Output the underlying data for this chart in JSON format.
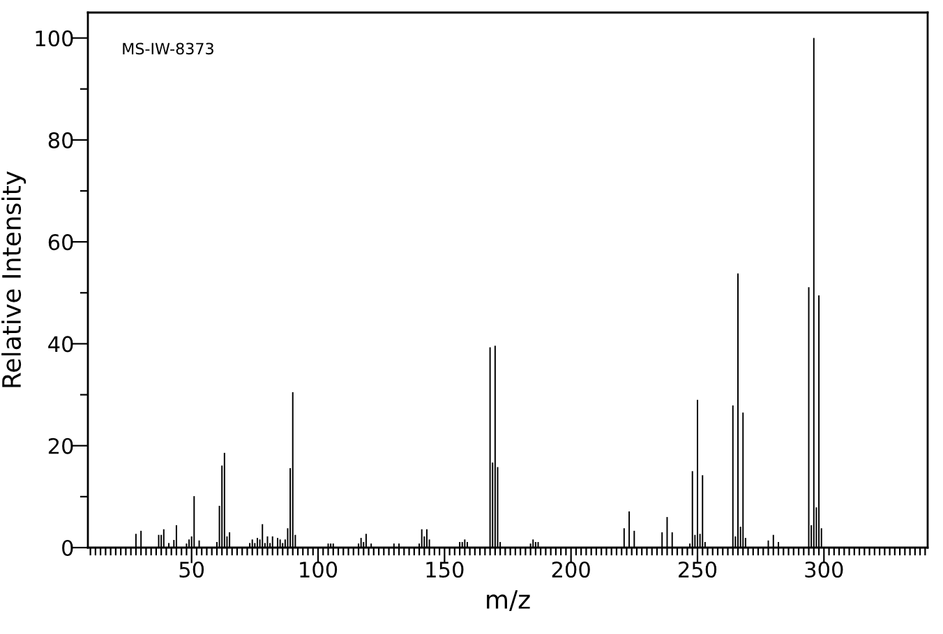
{
  "chart_data": {
    "type": "bar",
    "xlabel": "m/z",
    "ylabel": "Relative Intensity",
    "annotations": [
      "MS-IW-8373"
    ],
    "color": "#000000",
    "grid": false,
    "x": [
      28,
      30,
      37,
      38,
      39,
      41,
      43,
      44,
      48,
      49,
      50,
      51,
      53,
      60,
      61,
      62,
      63,
      64,
      65,
      73,
      74,
      75,
      76,
      77,
      78,
      79,
      80,
      81,
      82,
      84,
      85,
      86,
      87,
      88,
      89,
      90,
      91,
      104,
      105,
      106,
      116,
      117,
      118,
      119,
      121,
      130,
      132,
      140,
      141,
      142,
      143,
      144,
      156,
      157,
      158,
      159,
      168,
      169,
      170,
      171,
      172,
      184,
      185,
      186,
      187,
      221,
      223,
      225,
      236,
      238,
      240,
      247,
      248,
      249,
      250,
      251,
      252,
      253,
      264,
      265,
      266,
      267,
      268,
      269,
      278,
      280,
      282,
      294,
      295,
      296,
      297,
      298,
      299
    ],
    "values": [
      2.7,
      3.3,
      2.5,
      2.5,
      3.6,
      0.9,
      1.5,
      4.4,
      0.8,
      1.6,
      2.2,
      10.1,
      1.4,
      1.1,
      8.2,
      16.1,
      18.6,
      2.2,
      3.0,
      0.9,
      1.6,
      0.9,
      1.9,
      1.6,
      4.6,
      0.9,
      2.2,
      0.9,
      2.2,
      1.9,
      1.6,
      0.9,
      1.6,
      3.8,
      15.6,
      30.5,
      2.5,
      0.8,
      0.8,
      0.8,
      0.8,
      1.9,
      1.1,
      2.7,
      0.8,
      0.8,
      0.8,
      0.8,
      3.6,
      2.2,
      3.6,
      1.6,
      1.1,
      1.1,
      1.6,
      1.1,
      39.3,
      16.7,
      39.6,
      15.8,
      1.1,
      0.8,
      1.6,
      1.1,
      1.1,
      3.8,
      7.1,
      3.3,
      3.0,
      6.0,
      3.0,
      0.8,
      15.0,
      2.5,
      29.0,
      2.7,
      14.2,
      1.1,
      27.9,
      2.2,
      53.8,
      4.1,
      26.5,
      1.9,
      1.4,
      2.5,
      1.1,
      51.1,
      4.4,
      100,
      7.9,
      49.5,
      3.8
    ],
    "xlim": [
      9,
      341
    ],
    "ylim": [
      0,
      105
    ],
    "xticks": [
      {
        "value": 10,
        "label": null
      },
      {
        "value": 12,
        "label": null
      },
      {
        "value": 14,
        "label": null
      },
      {
        "value": 16,
        "label": null
      },
      {
        "value": 18,
        "label": null
      },
      {
        "value": 20,
        "label": null
      },
      {
        "value": 22,
        "label": null
      },
      {
        "value": 24,
        "label": null
      },
      {
        "value": 26,
        "label": null
      },
      {
        "value": 28,
        "label": null
      },
      {
        "value": 30,
        "label": null
      },
      {
        "value": 32,
        "label": null
      },
      {
        "value": 34,
        "label": null
      },
      {
        "value": 36,
        "label": null
      },
      {
        "value": 38,
        "label": null
      },
      {
        "value": 40,
        "label": null
      },
      {
        "value": 42,
        "label": null
      },
      {
        "value": 44,
        "label": null
      },
      {
        "value": 46,
        "label": null
      },
      {
        "value": 48,
        "label": null
      },
      50,
      {
        "value": 52,
        "label": null
      },
      {
        "value": 54,
        "label": null
      },
      {
        "value": 56,
        "label": null
      },
      {
        "value": 58,
        "label": null
      },
      {
        "value": 60,
        "label": null
      },
      {
        "value": 62,
        "label": null
      },
      {
        "value": 64,
        "label": null
      },
      {
        "value": 66,
        "label": null
      },
      {
        "value": 68,
        "label": null
      },
      {
        "value": 70,
        "label": null
      },
      {
        "value": 72,
        "label": null
      },
      {
        "value": 74,
        "label": null
      },
      {
        "value": 76,
        "label": null
      },
      {
        "value": 78,
        "label": null
      },
      {
        "value": 80,
        "label": null
      },
      {
        "value": 82,
        "label": null
      },
      {
        "value": 84,
        "label": null
      },
      {
        "value": 86,
        "label": null
      },
      {
        "value": 88,
        "label": null
      },
      {
        "value": 90,
        "label": null
      },
      {
        "value": 92,
        "label": null
      },
      {
        "value": 94,
        "label": null
      },
      {
        "value": 96,
        "label": null
      },
      {
        "value": 98,
        "label": null
      },
      100,
      {
        "value": 102,
        "label": null
      },
      {
        "value": 104,
        "label": null
      },
      {
        "value": 106,
        "label": null
      },
      {
        "value": 108,
        "label": null
      },
      {
        "value": 110,
        "label": null
      },
      {
        "value": 112,
        "label": null
      },
      {
        "value": 114,
        "label": null
      },
      {
        "value": 116,
        "label": null
      },
      {
        "value": 118,
        "label": null
      },
      {
        "value": 120,
        "label": null
      },
      {
        "value": 122,
        "label": null
      },
      {
        "value": 124,
        "label": null
      },
      {
        "value": 126,
        "label": null
      },
      {
        "value": 128,
        "label": null
      },
      {
        "value": 130,
        "label": null
      },
      {
        "value": 132,
        "label": null
      },
      {
        "value": 134,
        "label": null
      },
      {
        "value": 136,
        "label": null
      },
      {
        "value": 138,
        "label": null
      },
      {
        "value": 140,
        "label": null
      },
      {
        "value": 142,
        "label": null
      },
      {
        "value": 144,
        "label": null
      },
      {
        "value": 146,
        "label": null
      },
      {
        "value": 148,
        "label": null
      },
      150,
      {
        "value": 152,
        "label": null
      },
      {
        "value": 154,
        "label": null
      },
      {
        "value": 156,
        "label": null
      },
      {
        "value": 158,
        "label": null
      },
      {
        "value": 160,
        "label": null
      },
      {
        "value": 162,
        "label": null
      },
      {
        "value": 164,
        "label": null
      },
      {
        "value": 166,
        "label": null
      },
      {
        "value": 168,
        "label": null
      },
      {
        "value": 170,
        "label": null
      },
      {
        "value": 172,
        "label": null
      },
      {
        "value": 174,
        "label": null
      },
      {
        "value": 176,
        "label": null
      },
      {
        "value": 178,
        "label": null
      },
      {
        "value": 180,
        "label": null
      },
      {
        "value": 182,
        "label": null
      },
      {
        "value": 184,
        "label": null
      },
      {
        "value": 186,
        "label": null
      },
      {
        "value": 188,
        "label": null
      },
      {
        "value": 190,
        "label": null
      },
      {
        "value": 192,
        "label": null
      },
      {
        "value": 194,
        "label": null
      },
      {
        "value": 196,
        "label": null
      },
      {
        "value": 198,
        "label": null
      },
      200,
      {
        "value": 202,
        "label": null
      },
      {
        "value": 204,
        "label": null
      },
      {
        "value": 206,
        "label": null
      },
      {
        "value": 208,
        "label": null
      },
      {
        "value": 210,
        "label": null
      },
      {
        "value": 212,
        "label": null
      },
      {
        "value": 214,
        "label": null
      },
      {
        "value": 216,
        "label": null
      },
      {
        "value": 218,
        "label": null
      },
      {
        "value": 220,
        "label": null
      },
      {
        "value": 222,
        "label": null
      },
      {
        "value": 224,
        "label": null
      },
      {
        "value": 226,
        "label": null
      },
      {
        "value": 228,
        "label": null
      },
      {
        "value": 230,
        "label": null
      },
      {
        "value": 232,
        "label": null
      },
      {
        "value": 234,
        "label": null
      },
      {
        "value": 236,
        "label": null
      },
      {
        "value": 238,
        "label": null
      },
      {
        "value": 240,
        "label": null
      },
      {
        "value": 242,
        "label": null
      },
      {
        "value": 244,
        "label": null
      },
      {
        "value": 246,
        "label": null
      },
      {
        "value": 248,
        "label": null
      },
      250,
      {
        "value": 252,
        "label": null
      },
      {
        "value": 254,
        "label": null
      },
      {
        "value": 256,
        "label": null
      },
      {
        "value": 258,
        "label": null
      },
      {
        "value": 260,
        "label": null
      },
      {
        "value": 262,
        "label": null
      },
      {
        "value": 264,
        "label": null
      },
      {
        "value": 266,
        "label": null
      },
      {
        "value": 268,
        "label": null
      },
      {
        "value": 270,
        "label": null
      },
      {
        "value": 272,
        "label": null
      },
      {
        "value": 274,
        "label": null
      },
      {
        "value": 276,
        "label": null
      },
      {
        "value": 278,
        "label": null
      },
      {
        "value": 280,
        "label": null
      },
      {
        "value": 282,
        "label": null
      },
      {
        "value": 284,
        "label": null
      },
      {
        "value": 286,
        "label": null
      },
      {
        "value": 288,
        "label": null
      },
      {
        "value": 290,
        "label": null
      },
      {
        "value": 292,
        "label": null
      },
      {
        "value": 294,
        "label": null
      },
      {
        "value": 296,
        "label": null
      },
      {
        "value": 298,
        "label": null
      },
      300,
      {
        "value": 302,
        "label": null
      },
      {
        "value": 304,
        "label": null
      },
      {
        "value": 306,
        "label": null
      },
      {
        "value": 308,
        "label": null
      },
      {
        "value": 310,
        "label": null
      },
      {
        "value": 312,
        "label": null
      },
      {
        "value": 314,
        "label": null
      },
      {
        "value": 316,
        "label": null
      },
      {
        "value": 318,
        "label": null
      },
      {
        "value": 320,
        "label": null
      },
      {
        "value": 322,
        "label": null
      },
      {
        "value": 324,
        "label": null
      },
      {
        "value": 326,
        "label": null
      },
      {
        "value": 328,
        "label": null
      },
      {
        "value": 330,
        "label": null
      },
      {
        "value": 332,
        "label": null
      },
      {
        "value": 334,
        "label": null
      },
      {
        "value": 336,
        "label": null
      },
      {
        "value": 338,
        "label": null
      },
      {
        "value": 340,
        "label": null
      }
    ],
    "yticks": [
      0,
      {
        "value": 10,
        "label": null
      },
      20,
      {
        "value": 30,
        "label": null
      },
      40,
      {
        "value": 50,
        "label": null
      },
      60,
      {
        "value": 70,
        "label": null
      },
      80,
      {
        "value": 90,
        "label": null
      },
      100
    ]
  }
}
